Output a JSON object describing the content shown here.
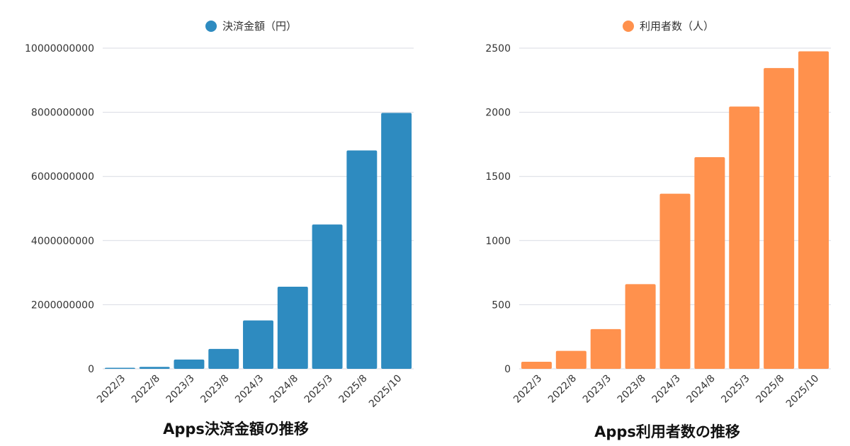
{
  "chart_data": [
    {
      "type": "bar",
      "title": "Apps決済金額の推移",
      "legend": "決済金額（円）",
      "legend_position": "top-center",
      "color": "#2e8bc0",
      "categories": [
        "2022/3",
        "2022/8",
        "2023/3",
        "2023/8",
        "2024/3",
        "2024/8",
        "2025/3",
        "2025/8",
        "2025/10"
      ],
      "values": [
        20000000,
        60000000,
        290000000,
        620000000,
        1510000000,
        2560000000,
        4500000000,
        6810000000,
        7980000000
      ],
      "ylim": [
        0,
        10000000000
      ],
      "yticks": [
        "0",
        "2000000000",
        "4000000000",
        "6000000000",
        "8000000000",
        "10000000000"
      ],
      "grid": true,
      "xlabel": "",
      "ylabel": ""
    },
    {
      "type": "bar",
      "title": "Apps利用者数の推移",
      "legend": "利用者数（人）",
      "legend_position": "top-center",
      "color": "#ff914d",
      "categories": [
        "2022/3",
        "2022/8",
        "2023/3",
        "2023/8",
        "2024/3",
        "2024/8",
        "2025/3",
        "2025/8",
        "2025/10"
      ],
      "values": [
        55,
        140,
        310,
        660,
        1365,
        1650,
        2045,
        2345,
        2475
      ],
      "ylim": [
        0,
        2500
      ],
      "yticks": [
        "0",
        "500",
        "1000",
        "1500",
        "2000",
        "2500"
      ],
      "grid": true,
      "xlabel": "",
      "ylabel": ""
    }
  ]
}
